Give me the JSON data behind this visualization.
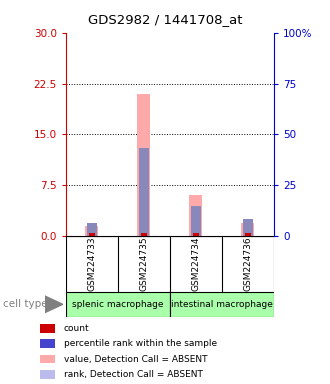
{
  "title": "GDS2982 / 1441708_at",
  "samples": [
    "GSM224733",
    "GSM224735",
    "GSM224734",
    "GSM224736"
  ],
  "cell_types": [
    "splenic macrophage",
    "intestinal macrophage"
  ],
  "pink_values": [
    1.5,
    21.0,
    6.0,
    2.0
  ],
  "blue_ranks": [
    2.0,
    13.0,
    4.5,
    2.5
  ],
  "red_counts": [
    0.4,
    0.4,
    0.4,
    0.4
  ],
  "ylim_left": [
    0,
    30
  ],
  "ylim_right": [
    0,
    100
  ],
  "yticks_left": [
    0,
    7.5,
    15,
    22.5,
    30
  ],
  "yticks_right": [
    0,
    25,
    50,
    75,
    100
  ],
  "ytick_labels_right": [
    "0",
    "25",
    "50",
    "75",
    "100%"
  ],
  "left_axis_color": "#cc0000",
  "right_axis_color": "#0000cc",
  "pink_color": "#ffaaaa",
  "blue_color": "#8888bb",
  "red_color": "#cc0000",
  "pink_bar_width": 0.25,
  "blue_bar_width": 0.18,
  "red_bar_width": 0.1,
  "sample_box_color": "#cccccc",
  "cell_type_color": "#aaffaa",
  "legend_items": [
    {
      "color": "#cc0000",
      "label": "count"
    },
    {
      "color": "#4444cc",
      "label": "percentile rank within the sample"
    },
    {
      "color": "#ffaaaa",
      "label": "value, Detection Call = ABSENT"
    },
    {
      "color": "#bbbbee",
      "label": "rank, Detection Call = ABSENT"
    }
  ],
  "background_color": "#ffffff"
}
